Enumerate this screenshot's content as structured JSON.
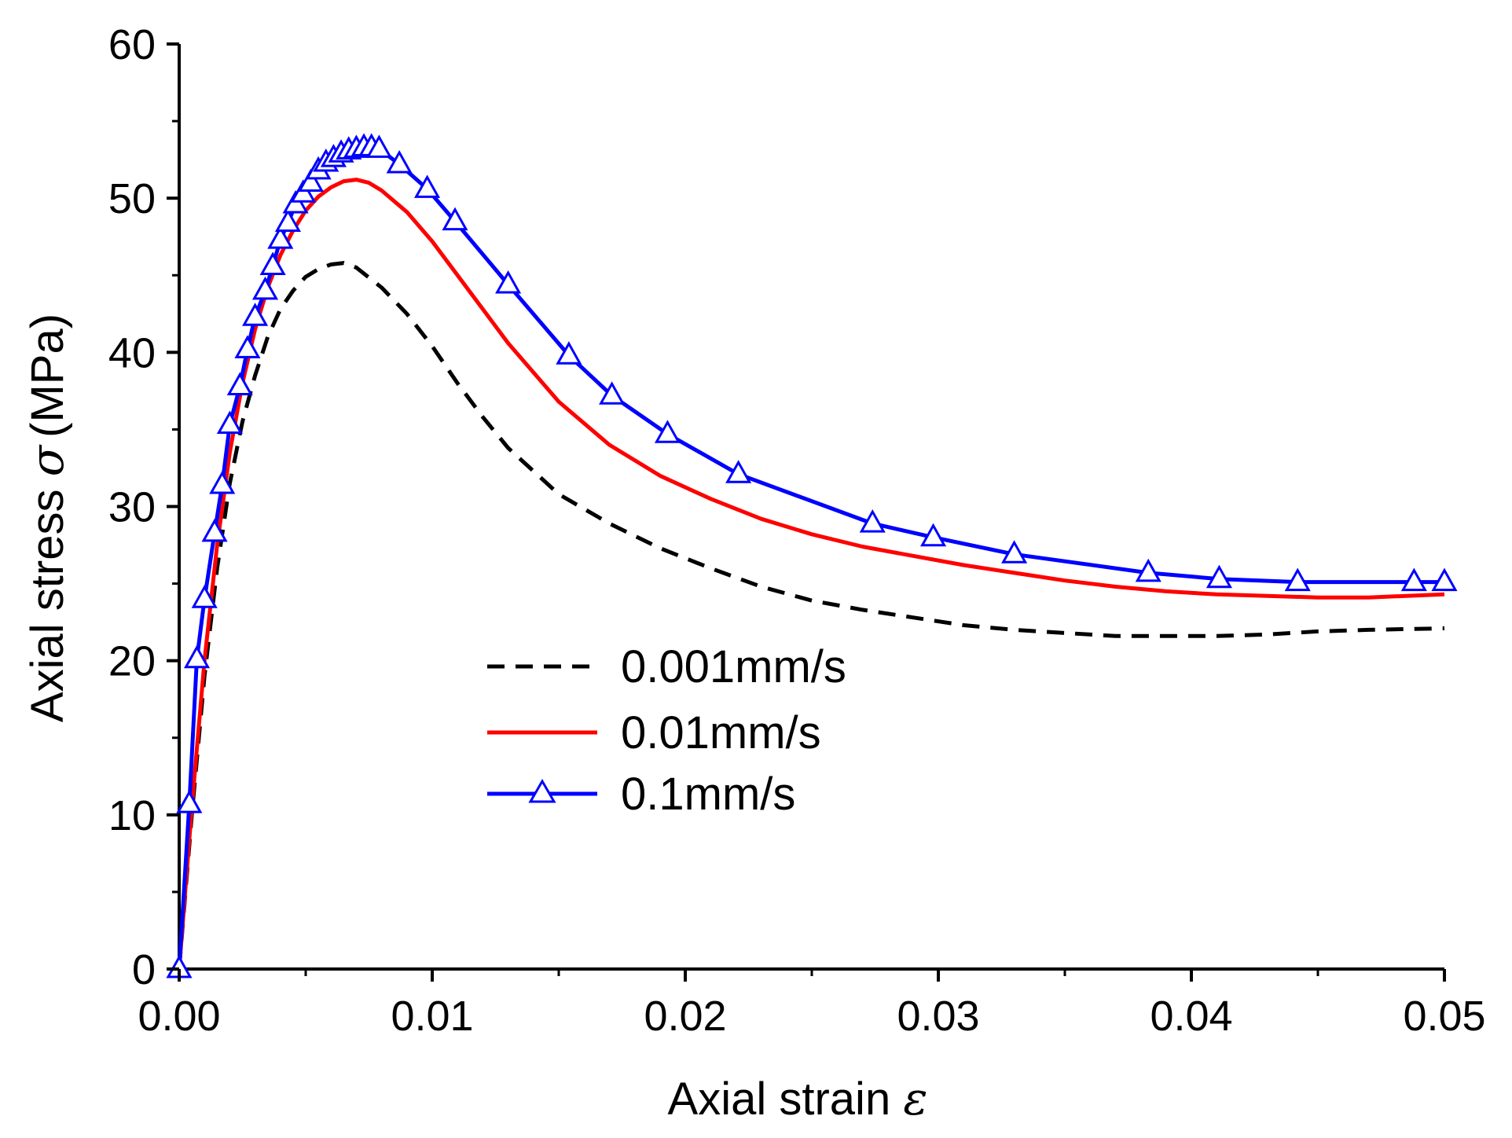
{
  "chart_data": {
    "type": "line",
    "title": "",
    "xlabel": "Axial strain",
    "xlabel_symbol": "ε",
    "ylabel_prefix": "Axial stress",
    "ylabel_symbol": "σ",
    "ylabel_suffix": "(MPa)",
    "xlim": [
      0,
      0.05
    ],
    "ylim": [
      0,
      60
    ],
    "xticks": [
      0,
      0.01,
      0.02,
      0.03,
      0.04,
      0.05
    ],
    "xtick_labels": [
      "0.00",
      "0.01",
      "0.02",
      "0.03",
      "0.04",
      "0.05"
    ],
    "yticks": [
      0,
      10,
      20,
      30,
      40,
      50,
      60
    ],
    "ytick_labels": [
      "0",
      "10",
      "20",
      "30",
      "40",
      "50",
      "60"
    ],
    "grid": false,
    "legend_position": "center",
    "series": [
      {
        "name": "0.001mm/s",
        "color": "#000000",
        "style": "dashed",
        "marker": "none",
        "x": [
          0,
          0.0005,
          0.001,
          0.0015,
          0.002,
          0.0025,
          0.003,
          0.0035,
          0.004,
          0.0045,
          0.005,
          0.0055,
          0.006,
          0.0065,
          0.007,
          0.008,
          0.009,
          0.01,
          0.011,
          0.012,
          0.013,
          0.015,
          0.017,
          0.019,
          0.021,
          0.023,
          0.025,
          0.027,
          0.029,
          0.031,
          0.033,
          0.035,
          0.037,
          0.039,
          0.041,
          0.043,
          0.045,
          0.047,
          0.05
        ],
        "y": [
          0,
          10,
          19,
          26,
          31.5,
          35.5,
          38.5,
          41,
          42.8,
          44,
          44.9,
          45.4,
          45.7,
          45.8,
          45.5,
          44.2,
          42.5,
          40.4,
          38,
          35.8,
          33.8,
          30.8,
          28.9,
          27.3,
          26,
          24.8,
          23.9,
          23.3,
          22.8,
          22.3,
          22,
          21.8,
          21.6,
          21.6,
          21.6,
          21.7,
          21.9,
          22,
          22.1
        ]
      },
      {
        "name": "0.01mm/s",
        "color": "#ff0000",
        "style": "solid",
        "marker": "none",
        "x": [
          0,
          0.0005,
          0.001,
          0.0015,
          0.002,
          0.0025,
          0.003,
          0.0035,
          0.004,
          0.0045,
          0.005,
          0.0055,
          0.006,
          0.0065,
          0.007,
          0.0075,
          0.008,
          0.009,
          0.01,
          0.011,
          0.012,
          0.013,
          0.015,
          0.017,
          0.019,
          0.021,
          0.023,
          0.025,
          0.027,
          0.029,
          0.031,
          0.033,
          0.035,
          0.037,
          0.039,
          0.041,
          0.043,
          0.045,
          0.047,
          0.05
        ],
        "y": [
          0,
          10.5,
          20,
          27.5,
          33.5,
          38,
          41.5,
          44.2,
          46.3,
          47.9,
          49.2,
          50.1,
          50.7,
          51.1,
          51.2,
          51,
          50.5,
          49.1,
          47.2,
          45,
          42.8,
          40.6,
          36.8,
          34,
          32,
          30.5,
          29.2,
          28.2,
          27.4,
          26.8,
          26.2,
          25.7,
          25.2,
          24.8,
          24.5,
          24.3,
          24.2,
          24.1,
          24.1,
          24.3
        ]
      },
      {
        "name": "0.1mm/s",
        "color": "#0000ff",
        "style": "solid",
        "marker": "triangle",
        "x": [
          0,
          0.0004,
          0.0007,
          0.001,
          0.0014,
          0.0017,
          0.002,
          0.0024,
          0.0027,
          0.003,
          0.0034,
          0.0037,
          0.004,
          0.0043,
          0.0046,
          0.0049,
          0.0052,
          0.0055,
          0.0058,
          0.0061,
          0.0064,
          0.0067,
          0.007,
          0.0073,
          0.0076,
          0.0079,
          0.0087,
          0.0098,
          0.0109,
          0.013,
          0.0154,
          0.0171,
          0.0193,
          0.0221,
          0.0274,
          0.0298,
          0.033,
          0.0383,
          0.0411,
          0.0442,
          0.0488,
          0.05
        ],
        "y": [
          0,
          10.7,
          20.1,
          24,
          28.3,
          31.4,
          35.3,
          37.8,
          40.2,
          42.3,
          44,
          45.6,
          47.3,
          48.4,
          49.6,
          50.3,
          51,
          51.8,
          52.3,
          52.6,
          52.9,
          53.1,
          53.2,
          53.3,
          53.3,
          53.2,
          52.2,
          50.6,
          48.5,
          44.4,
          39.8,
          37.2,
          34.7,
          32.1,
          28.9,
          28,
          26.9,
          25.7,
          25.3,
          25.1,
          25.1,
          25.1
        ]
      }
    ]
  }
}
